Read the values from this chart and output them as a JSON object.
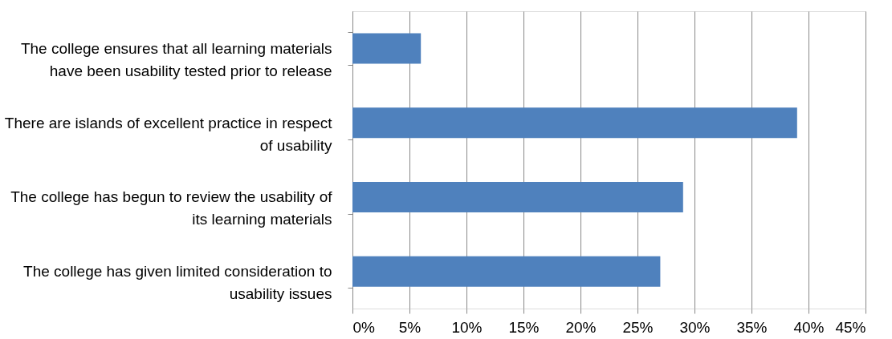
{
  "chart_data": {
    "type": "bar",
    "orientation": "horizontal",
    "categories": [
      "The college ensures that all learning materials have been usability tested prior to release",
      "There are islands of excellent practice in respect of usability",
      "The college has begun to review the usability of its learning materials",
      "The college has given limited consideration to usability issues"
    ],
    "values": [
      6,
      39,
      29,
      27
    ],
    "color": "#4f81bd",
    "xlim": [
      0,
      45
    ],
    "xticks": [
      {
        "value": 0,
        "label": "0%"
      },
      {
        "value": 5,
        "label": "5%"
      },
      {
        "value": 10,
        "label": "10%"
      },
      {
        "value": 15,
        "label": "15%"
      },
      {
        "value": 20,
        "label": "20%"
      },
      {
        "value": 25,
        "label": "25%"
      },
      {
        "value": 30,
        "label": "30%"
      },
      {
        "value": 35,
        "label": "35%"
      },
      {
        "value": 40,
        "label": "40%"
      },
      {
        "value": 45,
        "label": "45%"
      }
    ],
    "grid": "x"
  }
}
